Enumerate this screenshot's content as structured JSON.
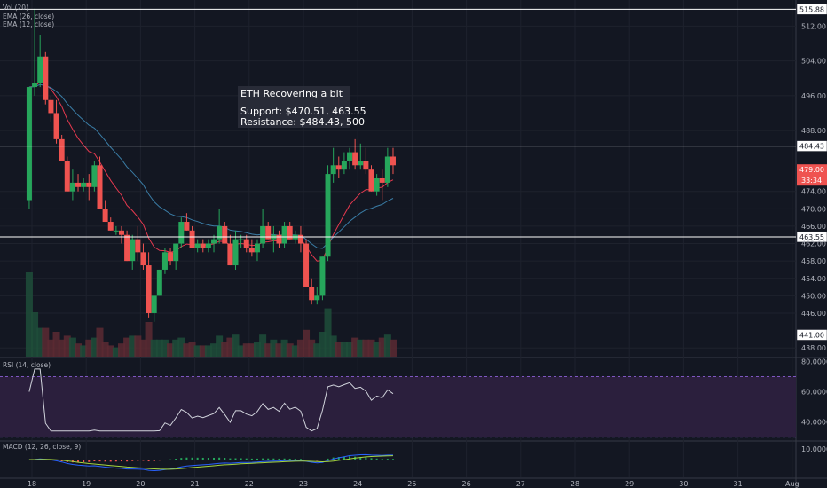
{
  "chart_data": [
    {
      "type": "candlestick",
      "pane": "price",
      "ylim": [
        436,
        518
      ],
      "y_ticks": [
        438,
        446,
        450,
        454,
        458,
        462,
        466,
        470,
        474,
        488,
        496,
        504,
        512
      ],
      "x_ticks": [
        "18",
        "19",
        "20",
        "21",
        "22",
        "23",
        "24",
        "25",
        "26",
        "27",
        "28",
        "29",
        "30",
        "31",
        "Aug"
      ],
      "legend": [
        "Vol (20)",
        "EMA (26, close)",
        "EMA (12, close)"
      ],
      "annotation": {
        "title": "ETH Recovering a bit",
        "lines": [
          "Support: $470.51, 463.55",
          "Resistance: $484.43, 500"
        ]
      },
      "hlines": [
        {
          "value": 515.88,
          "label": "515.88"
        },
        {
          "value": 484.43,
          "label": "484.43"
        },
        {
          "value": 463.55,
          "label": "463.55"
        },
        {
          "value": 441.0,
          "label": "441.00"
        }
      ],
      "last_price_tag": {
        "value": 479.0,
        "label": "479.00",
        "sub": "33:34"
      },
      "candles": [
        [
          17.95,
          472,
          498,
          470,
          498
        ],
        [
          18.05,
          498,
          516,
          496,
          499
        ],
        [
          18.15,
          499,
          510,
          498,
          505
        ],
        [
          18.25,
          505,
          506,
          494,
          495
        ],
        [
          18.35,
          495,
          496,
          490,
          492
        ],
        [
          18.45,
          492,
          495,
          485,
          486
        ],
        [
          18.55,
          486,
          487,
          481,
          481
        ],
        [
          18.65,
          481,
          482,
          474,
          474
        ],
        [
          18.75,
          474,
          479,
          472,
          476
        ],
        [
          18.85,
          476,
          478,
          474,
          475
        ],
        [
          18.95,
          475,
          477,
          474,
          476
        ],
        [
          19.05,
          476,
          478,
          472,
          475
        ],
        [
          19.15,
          475,
          481,
          474,
          480
        ],
        [
          19.25,
          480,
          482,
          470,
          470
        ],
        [
          19.35,
          470,
          472,
          467,
          467
        ],
        [
          19.45,
          467,
          468,
          465,
          465
        ],
        [
          19.55,
          465,
          466,
          464,
          465
        ],
        [
          19.65,
          465,
          466,
          462,
          464
        ],
        [
          19.75,
          464,
          465,
          458,
          458
        ],
        [
          19.85,
          458,
          464,
          456,
          463
        ],
        [
          19.95,
          463,
          466,
          458,
          460
        ],
        [
          20.05,
          460,
          462,
          456,
          457
        ],
        [
          20.15,
          457,
          460,
          445,
          446
        ],
        [
          20.25,
          446,
          450,
          444,
          450
        ],
        [
          20.35,
          450,
          456,
          450,
          456
        ],
        [
          20.45,
          456,
          461,
          455,
          460
        ],
        [
          20.55,
          460,
          461,
          457,
          458
        ],
        [
          20.65,
          458,
          462,
          456,
          462
        ],
        [
          20.75,
          462,
          468,
          461,
          467
        ],
        [
          20.85,
          467,
          469,
          465,
          465
        ],
        [
          20.95,
          465,
          466,
          461,
          461
        ],
        [
          21.05,
          461,
          463,
          460,
          462
        ],
        [
          21.15,
          462,
          463,
          460,
          461
        ],
        [
          21.25,
          461,
          463,
          460,
          462
        ],
        [
          21.35,
          462,
          464,
          460,
          463
        ],
        [
          21.45,
          463,
          470,
          462,
          466
        ],
        [
          21.55,
          466,
          467,
          462,
          462
        ],
        [
          21.65,
          462,
          464,
          457,
          457
        ],
        [
          21.75,
          457,
          465,
          456,
          463
        ],
        [
          21.85,
          463,
          464,
          461,
          463
        ],
        [
          21.95,
          463,
          464,
          460,
          461
        ],
        [
          22.05,
          461,
          463,
          459,
          460
        ],
        [
          22.15,
          460,
          463,
          458,
          462
        ],
        [
          22.25,
          462,
          470,
          461,
          466
        ],
        [
          22.35,
          466,
          467,
          463,
          463
        ],
        [
          22.45,
          463,
          466,
          460,
          464
        ],
        [
          22.55,
          464,
          465,
          461,
          462
        ],
        [
          22.65,
          462,
          467,
          461,
          466
        ],
        [
          22.75,
          466,
          467,
          463,
          463
        ],
        [
          22.85,
          463,
          465,
          462,
          464
        ],
        [
          22.95,
          464,
          466,
          460,
          462
        ],
        [
          23.05,
          462,
          463,
          452,
          452
        ],
        [
          23.15,
          452,
          454,
          448,
          449
        ],
        [
          23.25,
          449,
          452,
          448,
          450
        ],
        [
          23.35,
          450,
          459,
          449,
          459
        ],
        [
          23.45,
          459,
          480,
          458,
          478
        ],
        [
          23.55,
          478,
          484,
          476,
          480
        ],
        [
          23.65,
          480,
          482,
          477,
          479
        ],
        [
          23.75,
          479,
          483,
          478,
          481
        ],
        [
          23.85,
          481,
          484,
          479,
          483
        ],
        [
          23.95,
          483,
          486,
          479,
          480
        ],
        [
          24.05,
          480,
          485,
          479,
          481
        ],
        [
          24.15,
          481,
          484,
          478,
          479
        ],
        [
          24.25,
          479,
          480,
          474,
          474
        ],
        [
          24.35,
          474,
          478,
          473,
          477
        ],
        [
          24.45,
          477,
          479,
          472,
          476
        ],
        [
          24.55,
          476,
          484,
          475,
          482
        ],
        [
          24.65,
          482,
          484,
          478,
          480
        ]
      ]
    },
    {
      "type": "line",
      "pane": "rsi",
      "legend": "RSI (14, close)",
      "ylim": [
        28,
        82
      ],
      "y_ticks": [
        "80.0000",
        "60.0000",
        "40.0000"
      ],
      "bands": [
        70,
        30
      ]
    },
    {
      "type": "line",
      "pane": "macd",
      "legend": "MACD (12, 26, close, 9)",
      "y_ticks": [
        "10.0000"
      ]
    }
  ]
}
